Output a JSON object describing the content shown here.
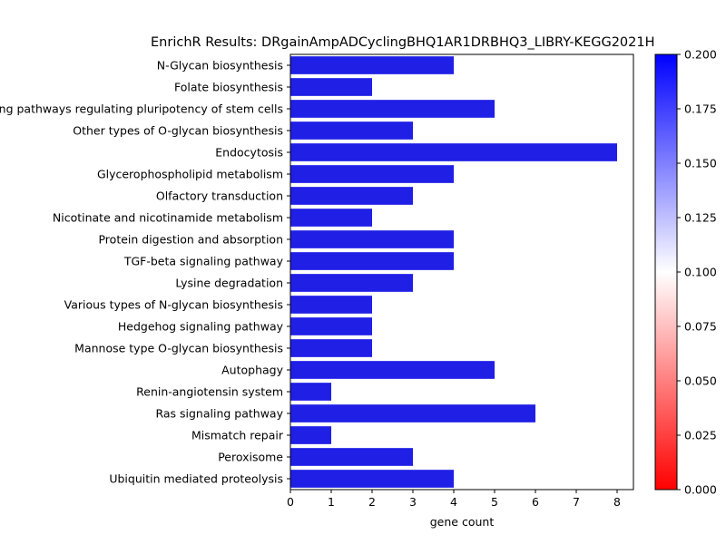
{
  "chart_data": {
    "type": "bar",
    "orientation": "horizontal",
    "title": "EnrichR Results: DRgainAmpADCyclingBHQ1AR1DRBHQ3_LIBRY-KEGG2021H",
    "xlabel": "gene count",
    "ylabel": "",
    "xlim": [
      0,
      8.4
    ],
    "x_ticks": [
      0,
      1,
      2,
      3,
      4,
      5,
      6,
      7,
      8
    ],
    "categories": [
      "N-Glycan biosynthesis",
      "Folate biosynthesis",
      "Signaling pathways regulating pluripotency of stem cells",
      "Other types of O-glycan biosynthesis",
      "Endocytosis",
      "Glycerophospholipid metabolism",
      "Olfactory transduction",
      "Nicotinate and nicotinamide metabolism",
      "Protein digestion and absorption",
      "TGF-beta signaling pathway",
      "Lysine degradation",
      "Various types of N-glycan biosynthesis",
      "Hedgehog signaling pathway",
      "Mannose type O-glycan biosynthesis",
      "Autophagy",
      "Renin-angiotensin system",
      "Ras signaling pathway",
      "Mismatch repair",
      "Peroxisome",
      "Ubiquitin mediated proteolysis"
    ],
    "values": [
      4,
      2,
      5,
      3,
      8,
      4,
      3,
      2,
      4,
      4,
      3,
      2,
      2,
      2,
      5,
      1,
      6,
      1,
      3,
      4
    ],
    "bar_color": "#1f1fe6",
    "colorbar": {
      "range": [
        0.0,
        0.2
      ],
      "ticks": [
        "0.000",
        "0.025",
        "0.050",
        "0.075",
        "0.100",
        "0.125",
        "0.150",
        "0.175",
        "0.200"
      ],
      "colors": [
        "#ff0000",
        "#ffffff",
        "#0000ff"
      ]
    },
    "grid": false,
    "legend": "none"
  }
}
